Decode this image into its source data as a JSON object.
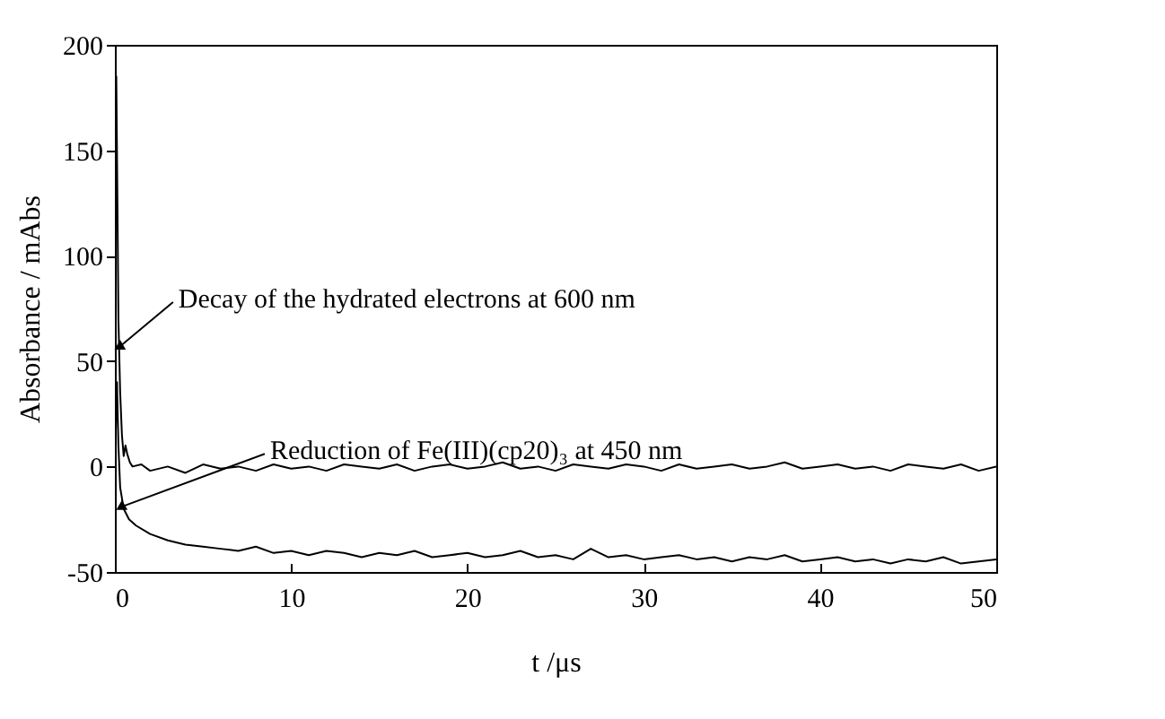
{
  "chart_data": {
    "type": "line",
    "xlabel": "t /μs",
    "ylabel": "Absorbance / mAbs",
    "xlim": [
      0,
      50
    ],
    "ylim": [
      -50,
      200
    ],
    "xticks": [
      0,
      10,
      20,
      30,
      40,
      50
    ],
    "yticks": [
      -50,
      0,
      50,
      100,
      150,
      200
    ],
    "marker": "none",
    "line_style": "solid",
    "annotations": [
      {
        "text": "Decay of the hydrated electrons at 600 nm",
        "x": 0.3,
        "y": 57
      },
      {
        "text": "Reduction of Fe(III)(cp20)₃ at 450 nm",
        "x": 0.4,
        "y": -19
      }
    ],
    "series": [
      {
        "color": "#000000",
        "x": [
          0,
          0.08,
          0.15,
          0.2,
          0.3,
          0.4,
          0.5,
          0.6,
          0.7,
          0.85,
          1,
          1.5,
          2,
          3,
          4,
          5,
          6,
          7,
          8,
          9,
          10,
          11,
          12,
          13,
          14,
          15,
          16,
          17,
          18,
          19,
          20,
          21,
          22,
          23,
          24,
          25,
          26,
          27,
          28,
          29,
          30,
          31,
          32,
          33,
          34,
          35,
          36,
          37,
          38,
          39,
          40,
          41,
          42,
          43,
          44,
          45,
          46,
          47,
          48,
          49,
          50
        ],
        "values": [
          0,
          185,
          120,
          70,
          35,
          15,
          5,
          10,
          6,
          2,
          0,
          1,
          -2,
          0,
          -3,
          1,
          -1,
          0,
          -2,
          1,
          -1,
          0,
          -2,
          1,
          0,
          -1,
          1,
          -2,
          0,
          1,
          -1,
          0,
          2,
          -1,
          0,
          -2,
          1,
          0,
          -1,
          1,
          0,
          -2,
          1,
          -1,
          0,
          1,
          -1,
          0,
          2,
          -1,
          0,
          1,
          -1,
          0,
          -2,
          1,
          0,
          -1,
          1,
          -2,
          0
        ]
      },
      {
        "color": "#000000",
        "x": [
          0,
          0.12,
          0.2,
          0.3,
          0.5,
          0.8,
          1.2,
          2,
          3,
          4,
          5,
          6,
          7,
          8,
          9,
          10,
          11,
          12,
          13,
          14,
          15,
          16,
          17,
          18,
          19,
          20,
          21,
          22,
          23,
          24,
          25,
          26,
          27,
          28,
          29,
          30,
          31,
          32,
          33,
          34,
          35,
          36,
          37,
          38,
          39,
          40,
          41,
          42,
          43,
          44,
          45,
          46,
          47,
          48,
          49,
          50
        ],
        "values": [
          0,
          40,
          10,
          -10,
          -20,
          -25,
          -28,
          -32,
          -35,
          -37,
          -38,
          -39,
          -40,
          -38,
          -41,
          -40,
          -42,
          -40,
          -41,
          -43,
          -41,
          -42,
          -40,
          -43,
          -42,
          -41,
          -43,
          -42,
          -40,
          -43,
          -42,
          -44,
          -39,
          -43,
          -42,
          -44,
          -43,
          -42,
          -44,
          -43,
          -45,
          -43,
          -44,
          -42,
          -45,
          -44,
          -43,
          -45,
          -44,
          -46,
          -44,
          -45,
          -43,
          -46,
          -45,
          -44
        ]
      }
    ]
  }
}
